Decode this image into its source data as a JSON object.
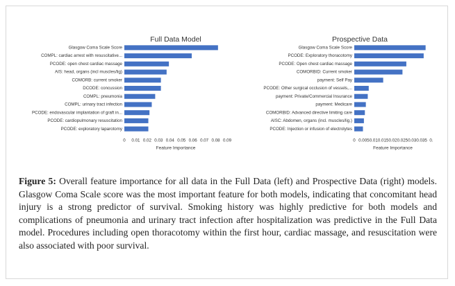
{
  "chart_data": [
    {
      "type": "bar",
      "title": "Full Data Model",
      "x_label": "Feature Importance",
      "color": "#4472c4",
      "categories": [
        "Glasgow Coma Scale Score",
        "COMPL: cardiac arrest with resuscitative...",
        "PCODE: open chest cardiac massage",
        "AIS: head, organs (incl muscles/lig)",
        "COMORB: current smoker",
        "DCODE: concussion",
        "COMPL: pneumonia",
        "COMPL: urinary tract infection",
        "PCODE: endovascular implantation of graft in...",
        "PCODE: cardiopulmonary resuscitation",
        "PCODE: exploratory laparotomy"
      ],
      "values": [
        0.082,
        0.059,
        0.039,
        0.037,
        0.032,
        0.032,
        0.027,
        0.024,
        0.022,
        0.021,
        0.021
      ],
      "xlim": [
        0,
        0.09
      ],
      "xticks": [
        0,
        0.01,
        0.02,
        0.03,
        0.04,
        0.05,
        0.06,
        0.07,
        0.08,
        0.09
      ]
    },
    {
      "type": "bar",
      "title": "Prospective Data",
      "x_label": "Feature Importance",
      "color": "#4472c4",
      "categories": [
        "Glasgow Coma Scale Score",
        "PCODE: Exploratory thoracotomy",
        "PCODE: Open chest cardiac massage",
        "COMORBID: Current smoker",
        "payment: Self Pay",
        "PCODE: Other surgical occlusion of vessels,...",
        "payment: Private/Commercial Insurance",
        "payment: Medicare",
        "COMORBID: Advanced directive limiting care",
        "AISC: Abdomen, organs (incl. muscles/lig.)",
        "PCODE: Injection or infusion of electrolytes"
      ],
      "values": [
        0.037,
        0.036,
        0.027,
        0.025,
        0.015,
        0.0075,
        0.007,
        0.006,
        0.0055,
        0.005,
        0.0045
      ],
      "xlim": [
        0,
        0.04
      ],
      "xticks": [
        0,
        0.005,
        0.01,
        0.015,
        0.02,
        0.025,
        0.03,
        0.035,
        {
          "value": 0.04,
          "label": "0."
        }
      ]
    }
  ],
  "caption": {
    "label": "Figure 5:",
    "text": "Overall feature importance for all data in the Full Data (left) and Prospective Data (right) models. Glasgow Coma Scale score was the most important feature for both models, indicating that concomitant head injury is a strong predictor of survival. Smoking history was highly predictive for both models and complications of pneumonia and urinary tract infection after hospitalization was predictive in the Full Data model. Procedures including open thoracotomy within the first hour, cardiac massage, and resuscitation were also associated with poor survival."
  }
}
